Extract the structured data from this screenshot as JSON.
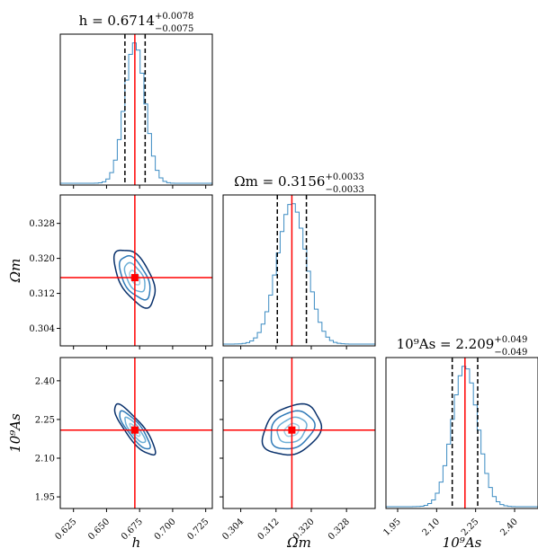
{
  "chart_data": {
    "type": "corner",
    "parameters": [
      {
        "key": "h",
        "label": "h",
        "title": {
          "lhs": "h = 0.6714",
          "plus": "+0.0078",
          "minus": "−0.0075"
        },
        "median": 0.6714,
        "lower": 0.6639,
        "upper": 0.6792,
        "truth": 0.6714,
        "range": [
          0.615,
          0.73
        ],
        "ticks": [
          "0.625",
          "0.650",
          "0.675",
          "0.700",
          "0.725"
        ],
        "tick_values": [
          0.625,
          0.65,
          0.675,
          0.7,
          0.725
        ],
        "sigma": 0.0077
      },
      {
        "key": "om",
        "label": "Ωm",
        "title": {
          "lhs": "Ωm = 0.3156",
          "plus": "+0.0033",
          "minus": "−0.0033"
        },
        "median": 0.3156,
        "lower": 0.3123,
        "upper": 0.3189,
        "truth": 0.3156,
        "range": [
          0.3,
          0.3345
        ],
        "ticks": [
          "0.304",
          "0.312",
          "0.320",
          "0.328"
        ],
        "tick_values": [
          0.304,
          0.312,
          0.32,
          0.328
        ],
        "sigma": 0.0033
      },
      {
        "key": "as",
        "label": "10⁹As",
        "title": {
          "lhs": "10⁹As = 2.209",
          "plus": "+0.049",
          "minus": "−0.049"
        },
        "median": 2.209,
        "lower": 2.16,
        "upper": 2.258,
        "truth": 2.209,
        "range": [
          1.905,
          2.49
        ],
        "ticks": [
          "1.95",
          "2.10",
          "2.25",
          "2.40"
        ],
        "tick_values": [
          1.95,
          2.1,
          2.25,
          2.4
        ],
        "sigma": 0.049
      }
    ],
    "correlations": {
      "h_om": -0.55,
      "h_as": -0.85,
      "om_as": 0.25
    },
    "contour_levels_sigma": [
      0.5,
      1.0,
      1.5,
      2.0
    ],
    "colors": {
      "histogram": "#3b8bc2",
      "truth": "#ff0000",
      "quantile": "#000000",
      "contours": [
        "#9ecae1",
        "#6baed6",
        "#2f7ab8",
        "#08306b"
      ]
    },
    "grid": false,
    "legend": "none"
  }
}
